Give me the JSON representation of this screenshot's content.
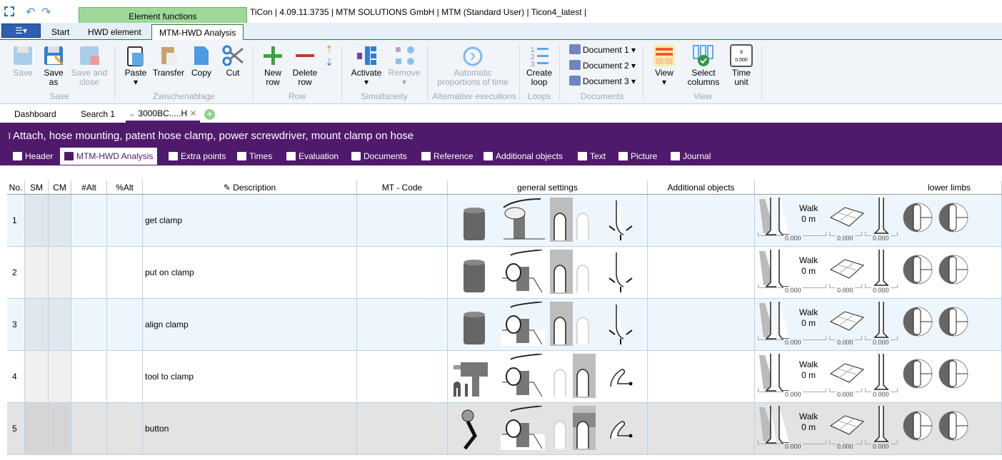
{
  "app": {
    "title": "TiCon | 4.09.11.3735 | MTM SOLUTIONS GmbH  | MTM (Standard User) | Ticon4_latest |",
    "context_tab": "Element functions"
  },
  "ribbon_tabs": [
    "Start",
    "HWD element",
    "MTM-HWD Analysis"
  ],
  "ribbon": {
    "save": {
      "save": "Save",
      "save_as": "Save as",
      "save_close": "Save and close",
      "group": "Save"
    },
    "clip": {
      "paste": "Paste",
      "transfer": "Transfer",
      "copy": "Copy",
      "cut": "Cut",
      "group": "Zwischenablage"
    },
    "row": {
      "new": "New row",
      "delete": "Delete row",
      "group": "Row"
    },
    "sim": {
      "activate": "Activate",
      "remove": "Remove",
      "group": "Simultaneity"
    },
    "alt": {
      "auto": "Automatic proportions of time",
      "group": "Alternative executions"
    },
    "loops": {
      "create": "Create loop",
      "group": "Loops"
    },
    "docs": {
      "d1": "Document 1",
      "d2": "Document 2",
      "d3": "Document 3",
      "group": "Documents"
    },
    "view": {
      "view": "View",
      "select": "Select columns",
      "time": "Time unit",
      "time_icon_s": "s",
      "time_icon_v": "0.000",
      "group": "View"
    }
  },
  "doc_tabs": [
    "Dashboard",
    "Search 1",
    "3000BC.....H"
  ],
  "element_title": "Attach, hose mounting, patent hose clamp, power screwdriver, mount clamp on hose",
  "element_tabs": [
    "Header",
    "MTM-HWD Analysis",
    "Extra points",
    "Times",
    "Evaluation",
    "Documents",
    "Reference",
    "Additional objects",
    "Text",
    "Picture",
    "Journal"
  ],
  "columns": [
    "No.",
    "SM",
    "CM",
    "#Alt",
    "%Alt",
    "Description",
    "MT - Code",
    "general settings",
    "Additional objects",
    "lower limbs"
  ],
  "rows": [
    {
      "no": "1",
      "desc": "get clamp",
      "object": "cylinder",
      "grasp": "reach",
      "hand": "left",
      "arm": "arm-move",
      "walk": "Walk",
      "dist": "0 m",
      "v1": "0.000",
      "v2": "0.000",
      "v3": "0.000",
      "bg": "#eef6fd"
    },
    {
      "no": "2",
      "desc": "put on clamp",
      "object": "cylinder",
      "grasp": "grasp",
      "hand": "left",
      "arm": "arm-move",
      "walk": "Walk",
      "dist": "0 m",
      "v1": "0.000",
      "v2": "0.000",
      "v3": "0.000",
      "bg": "#ffffff"
    },
    {
      "no": "3",
      "desc": "align clamp",
      "object": "cylinder",
      "grasp": "grasp",
      "hand": "left",
      "arm": "arm-move",
      "walk": "Walk",
      "dist": "0 m",
      "v1": "0.000",
      "v2": "0.000",
      "v3": "0.000",
      "bg": "#eef6fd"
    },
    {
      "no": "4",
      "desc": "tool to clamp",
      "object": "drill",
      "grasp": "grasp",
      "hand": "right",
      "arm": "arm-bent",
      "walk": "Walk",
      "dist": "0 m",
      "v1": "0.000",
      "v2": "0.000",
      "v3": "0.000",
      "bg": "#ffffff"
    },
    {
      "no": "5",
      "desc": "button",
      "object": "lever",
      "grasp": "grasp",
      "hand": "right-finger",
      "arm": "arm-bent",
      "walk": "Walk",
      "dist": "0 m",
      "v1": "0.000",
      "v2": "0.000",
      "v3": "0.000",
      "bg": "#e3e3e3"
    }
  ],
  "colors": {
    "accent_purple": "#4f1a6b",
    "ribbon_green": "#2e7d32",
    "context_green": "#9fd99a"
  }
}
